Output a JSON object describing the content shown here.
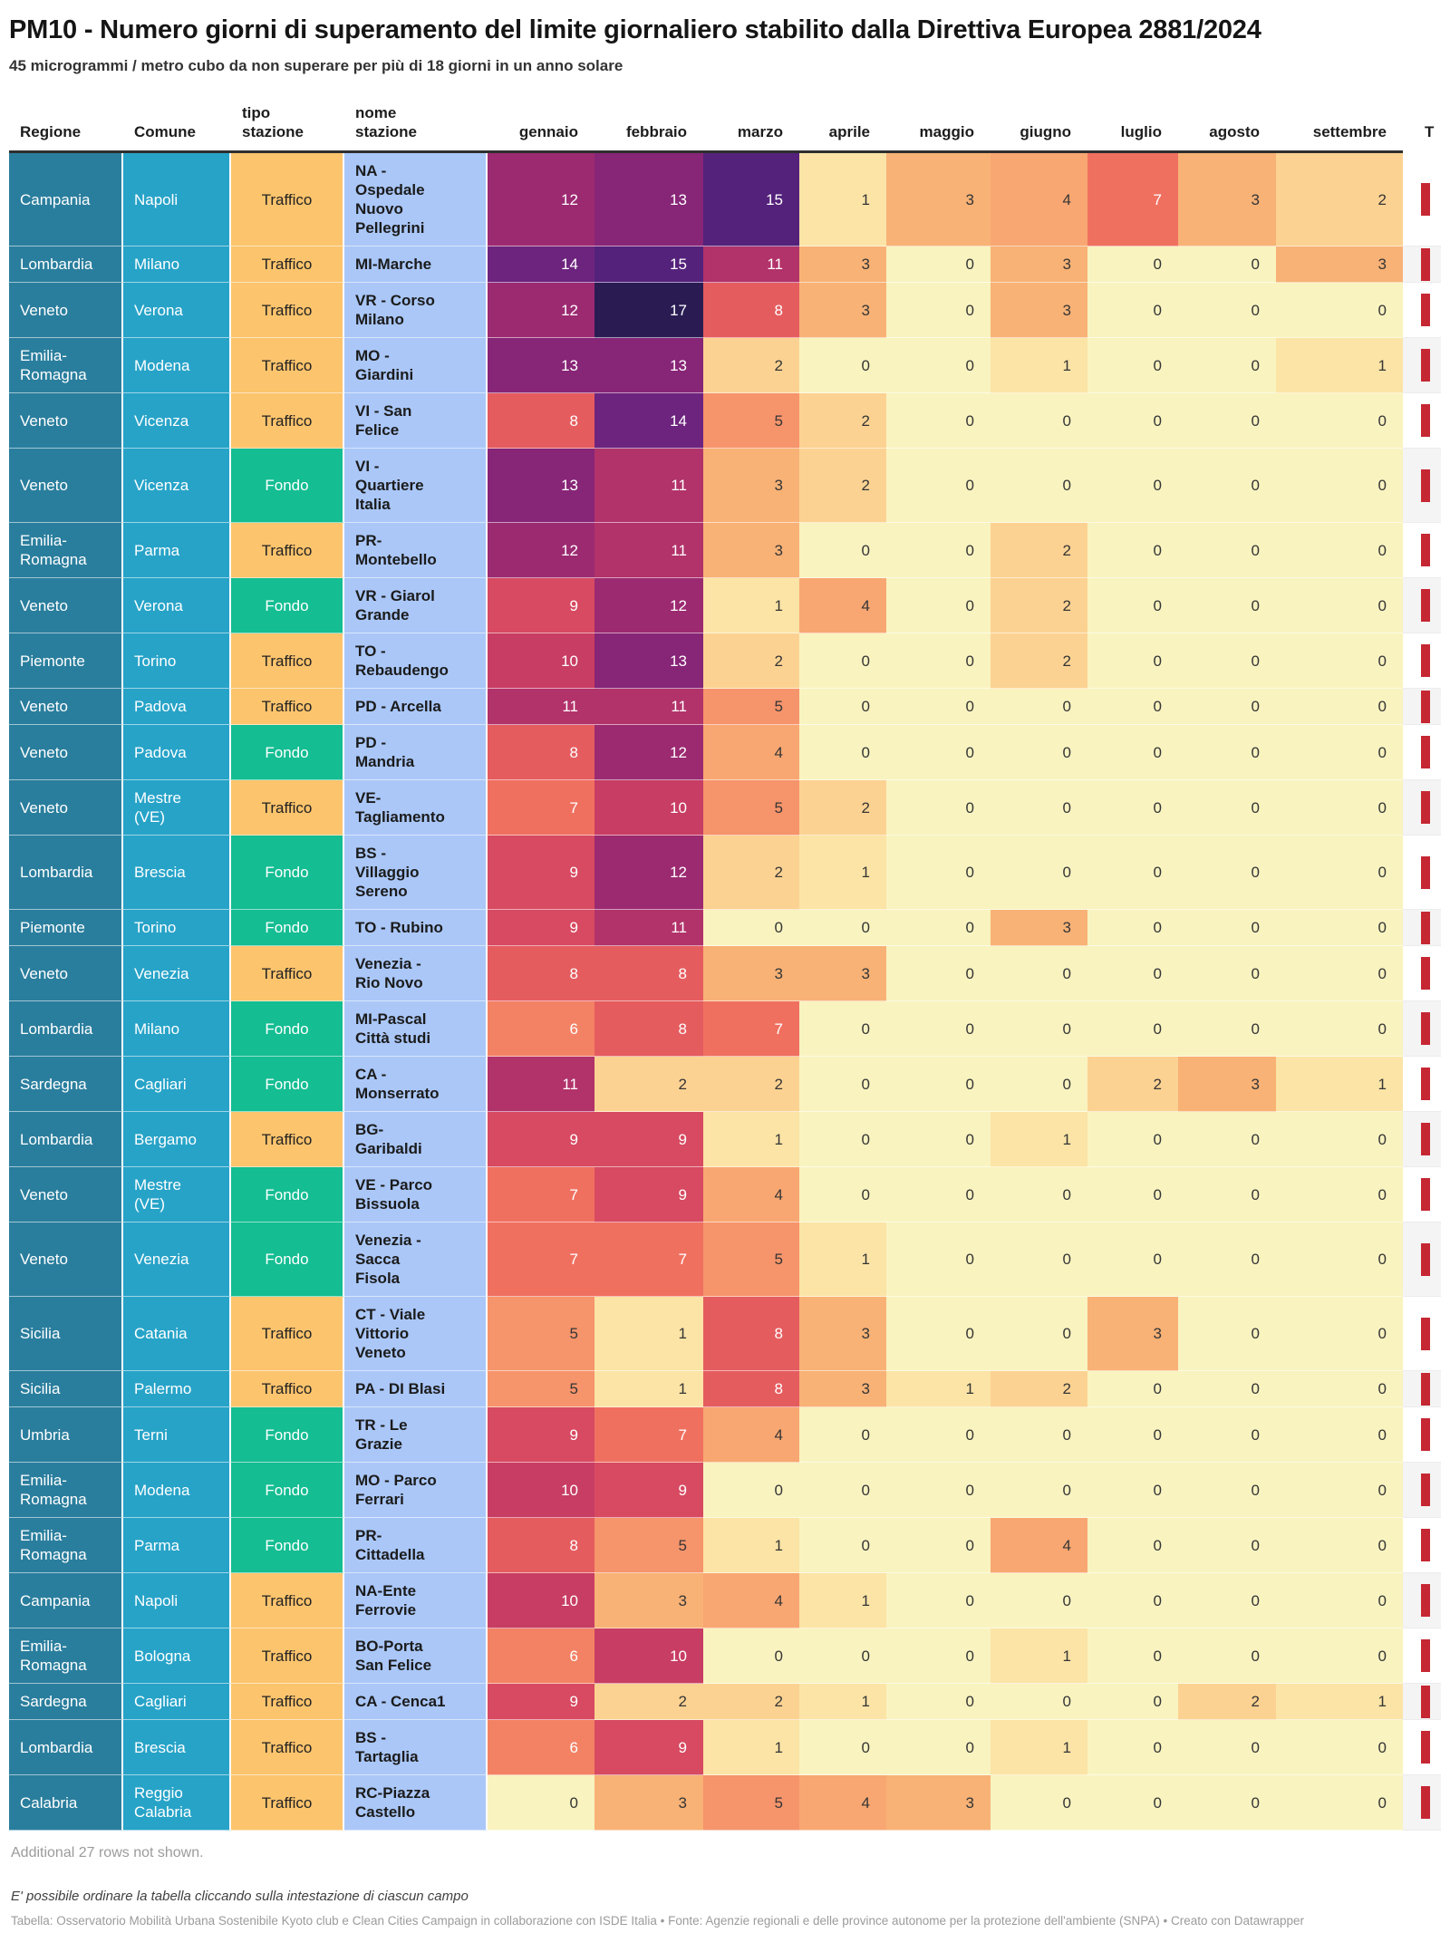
{
  "chart_data": {
    "type": "table",
    "title": "PM10 - Numero giorni di superamento del limite giornaliero stabilito dalla Direttiva Europea 2881/2024",
    "subtitle": "45 microgrammi / metro cubo da non superare per più di 18 giorni in un anno solare",
    "columns": {
      "text": [
        "Regione",
        "Comune",
        "tipo\nstazione",
        "nome\nstazione"
      ],
      "months": [
        "gennaio",
        "febbraio",
        "marzo",
        "aprile",
        "maggio",
        "giugno",
        "luglio",
        "agosto",
        "settembre"
      ],
      "clipped_last_column_header": "T"
    },
    "rows": [
      {
        "regione": "Campania",
        "comune": "Napoli",
        "tipo": "Traffico",
        "stazione": "NA - Ospedale Nuovo Pellegrini",
        "mesi": [
          12,
          13,
          15,
          1,
          3,
          4,
          7,
          3,
          2
        ]
      },
      {
        "regione": "Lombardia",
        "comune": "Milano",
        "tipo": "Traffico",
        "stazione": "MI-Marche",
        "mesi": [
          14,
          15,
          11,
          3,
          0,
          3,
          0,
          0,
          3
        ]
      },
      {
        "regione": "Veneto",
        "comune": "Verona",
        "tipo": "Traffico",
        "stazione": "VR - Corso Milano",
        "mesi": [
          12,
          17,
          8,
          3,
          0,
          3,
          0,
          0,
          0
        ]
      },
      {
        "regione": "Emilia-Romagna",
        "comune": "Modena",
        "tipo": "Traffico",
        "stazione": "MO - Giardini",
        "mesi": [
          13,
          13,
          2,
          0,
          0,
          1,
          0,
          0,
          1
        ]
      },
      {
        "regione": "Veneto",
        "comune": "Vicenza",
        "tipo": "Traffico",
        "stazione": "VI - San Felice",
        "mesi": [
          8,
          14,
          5,
          2,
          0,
          0,
          0,
          0,
          0
        ]
      },
      {
        "regione": "Veneto",
        "comune": "Vicenza",
        "tipo": "Fondo",
        "stazione": "VI - Quartiere Italia",
        "mesi": [
          13,
          11,
          3,
          2,
          0,
          0,
          0,
          0,
          0
        ]
      },
      {
        "regione": "Emilia-Romagna",
        "comune": "Parma",
        "tipo": "Traffico",
        "stazione": "PR-Montebello",
        "mesi": [
          12,
          11,
          3,
          0,
          0,
          2,
          0,
          0,
          0
        ]
      },
      {
        "regione": "Veneto",
        "comune": "Verona",
        "tipo": "Fondo",
        "stazione": "VR - Giarol Grande",
        "mesi": [
          9,
          12,
          1,
          4,
          0,
          2,
          0,
          0,
          0
        ]
      },
      {
        "regione": "Piemonte",
        "comune": "Torino",
        "tipo": "Traffico",
        "stazione": "TO - Rebaudengo",
        "mesi": [
          10,
          13,
          2,
          0,
          0,
          2,
          0,
          0,
          0
        ]
      },
      {
        "regione": "Veneto",
        "comune": "Padova",
        "tipo": "Traffico",
        "stazione": "PD - Arcella",
        "mesi": [
          11,
          11,
          5,
          0,
          0,
          0,
          0,
          0,
          0
        ]
      },
      {
        "regione": "Veneto",
        "comune": "Padova",
        "tipo": "Fondo",
        "stazione": "PD - Mandria",
        "mesi": [
          8,
          12,
          4,
          0,
          0,
          0,
          0,
          0,
          0
        ]
      },
      {
        "regione": "Veneto",
        "comune": "Mestre (VE)",
        "tipo": "Traffico",
        "stazione": "VE-Tagliamento",
        "mesi": [
          7,
          10,
          5,
          2,
          0,
          0,
          0,
          0,
          0
        ]
      },
      {
        "regione": "Lombardia",
        "comune": "Brescia",
        "tipo": "Fondo",
        "stazione": "BS - Villaggio Sereno",
        "mesi": [
          9,
          12,
          2,
          1,
          0,
          0,
          0,
          0,
          0
        ]
      },
      {
        "regione": "Piemonte",
        "comune": "Torino",
        "tipo": "Fondo",
        "stazione": "TO - Rubino",
        "mesi": [
          9,
          11,
          0,
          0,
          0,
          3,
          0,
          0,
          0
        ]
      },
      {
        "regione": "Veneto",
        "comune": "Venezia",
        "tipo": "Traffico",
        "stazione": "Venezia - Rio Novo",
        "mesi": [
          8,
          8,
          3,
          3,
          0,
          0,
          0,
          0,
          0
        ]
      },
      {
        "regione": "Lombardia",
        "comune": "Milano",
        "tipo": "Fondo",
        "stazione": "MI-Pascal Città studi",
        "mesi": [
          6,
          8,
          7,
          0,
          0,
          0,
          0,
          0,
          0
        ]
      },
      {
        "regione": "Sardegna",
        "comune": "Cagliari",
        "tipo": "Fondo",
        "stazione": "CA - Monserrato",
        "mesi": [
          11,
          2,
          2,
          0,
          0,
          0,
          2,
          3,
          1
        ]
      },
      {
        "regione": "Lombardia",
        "comune": "Bergamo",
        "tipo": "Traffico",
        "stazione": "BG-Garibaldi",
        "mesi": [
          9,
          9,
          1,
          0,
          0,
          1,
          0,
          0,
          0
        ]
      },
      {
        "regione": "Veneto",
        "comune": "Mestre (VE)",
        "tipo": "Fondo",
        "stazione": "VE - Parco Bissuola",
        "mesi": [
          7,
          9,
          4,
          0,
          0,
          0,
          0,
          0,
          0
        ]
      },
      {
        "regione": "Veneto",
        "comune": "Venezia",
        "tipo": "Fondo",
        "stazione": "Venezia - Sacca Fisola",
        "mesi": [
          7,
          7,
          5,
          1,
          0,
          0,
          0,
          0,
          0
        ]
      },
      {
        "regione": "Sicilia",
        "comune": "Catania",
        "tipo": "Traffico",
        "stazione": "CT - Viale Vittorio Veneto",
        "mesi": [
          5,
          1,
          8,
          3,
          0,
          0,
          3,
          0,
          0
        ]
      },
      {
        "regione": "Sicilia",
        "comune": "Palermo",
        "tipo": "Traffico",
        "stazione": "PA - DI Blasi",
        "mesi": [
          5,
          1,
          8,
          3,
          1,
          2,
          0,
          0,
          0
        ]
      },
      {
        "regione": "Umbria",
        "comune": "Terni",
        "tipo": "Fondo",
        "stazione": "TR - Le Grazie",
        "mesi": [
          9,
          7,
          4,
          0,
          0,
          0,
          0,
          0,
          0
        ]
      },
      {
        "regione": "Emilia-Romagna",
        "comune": "Modena",
        "tipo": "Fondo",
        "stazione": "MO - Parco Ferrari",
        "mesi": [
          10,
          9,
          0,
          0,
          0,
          0,
          0,
          0,
          0
        ]
      },
      {
        "regione": "Emilia-Romagna",
        "comune": "Parma",
        "tipo": "Fondo",
        "stazione": "PR-Cittadella",
        "mesi": [
          8,
          5,
          1,
          0,
          0,
          4,
          0,
          0,
          0
        ]
      },
      {
        "regione": "Campania",
        "comune": "Napoli",
        "tipo": "Traffico",
        "stazione": "NA-Ente Ferrovie",
        "mesi": [
          10,
          3,
          4,
          1,
          0,
          0,
          0,
          0,
          0
        ]
      },
      {
        "regione": "Emilia-Romagna",
        "comune": "Bologna",
        "tipo": "Traffico",
        "stazione": "BO-Porta San Felice",
        "mesi": [
          6,
          10,
          0,
          0,
          0,
          1,
          0,
          0,
          0
        ]
      },
      {
        "regione": "Sardegna",
        "comune": "Cagliari",
        "tipo": "Traffico",
        "stazione": "CA - Cenca1",
        "mesi": [
          9,
          2,
          2,
          1,
          0,
          0,
          0,
          2,
          1
        ]
      },
      {
        "regione": "Lombardia",
        "comune": "Brescia",
        "tipo": "Traffico",
        "stazione": "BS - Tartaglia",
        "mesi": [
          6,
          9,
          1,
          0,
          0,
          1,
          0,
          0,
          0
        ]
      },
      {
        "regione": "Calabria",
        "comune": "Reggio Calabria",
        "tipo": "Traffico",
        "stazione": "RC-Piazza Castello",
        "mesi": [
          0,
          3,
          5,
          4,
          3,
          0,
          0,
          0,
          0
        ]
      }
    ]
  },
  "colors": {
    "regione_bg": "#2a7e9d",
    "comune_bg": "#27a3c8",
    "traffico_bg": "#fcc46d",
    "traffico_text": "#222222",
    "fondo_bg": "#14bd92",
    "fondo_text": "#ffffff",
    "stazione_bg": "#aac7f8",
    "bar_red": "#c52733",
    "zebra_gray": "#f4f4f4",
    "heat_text_dark": "#353535",
    "heat_text_light": "#ffffff",
    "heat": {
      "0": "#f9f3c0",
      "1": "#fbe4a6",
      "2": "#fcd292",
      "3": "#f8b276",
      "4": "#f8a772",
      "5": "#f6946b",
      "6": "#f38265",
      "7": "#f07060",
      "8": "#e55c5f",
      "9": "#d74a61",
      "10": "#c83d63",
      "11": "#b2326a",
      "12": "#9c2a71",
      "13": "#872577",
      "14": "#6d247e",
      "15": "#54227b",
      "16": "#3f1f68",
      "17": "#2a1c53"
    }
  },
  "footer": {
    "additional_rows": "Additional 27 rows not shown.",
    "sort_note": "E' possibile ordinare la tabella cliccando sulla intestazione di ciascun campo",
    "source": "Tabella: Osservatorio Mobilità Urbana Sostenibile Kyoto club e Clean Cities Campaign in collaborazione con ISDE Italia • Fonte: Agenzie regionali e delle province autonome per la protezione dell'ambiente (SNPA) • Creato con Datawrapper"
  }
}
